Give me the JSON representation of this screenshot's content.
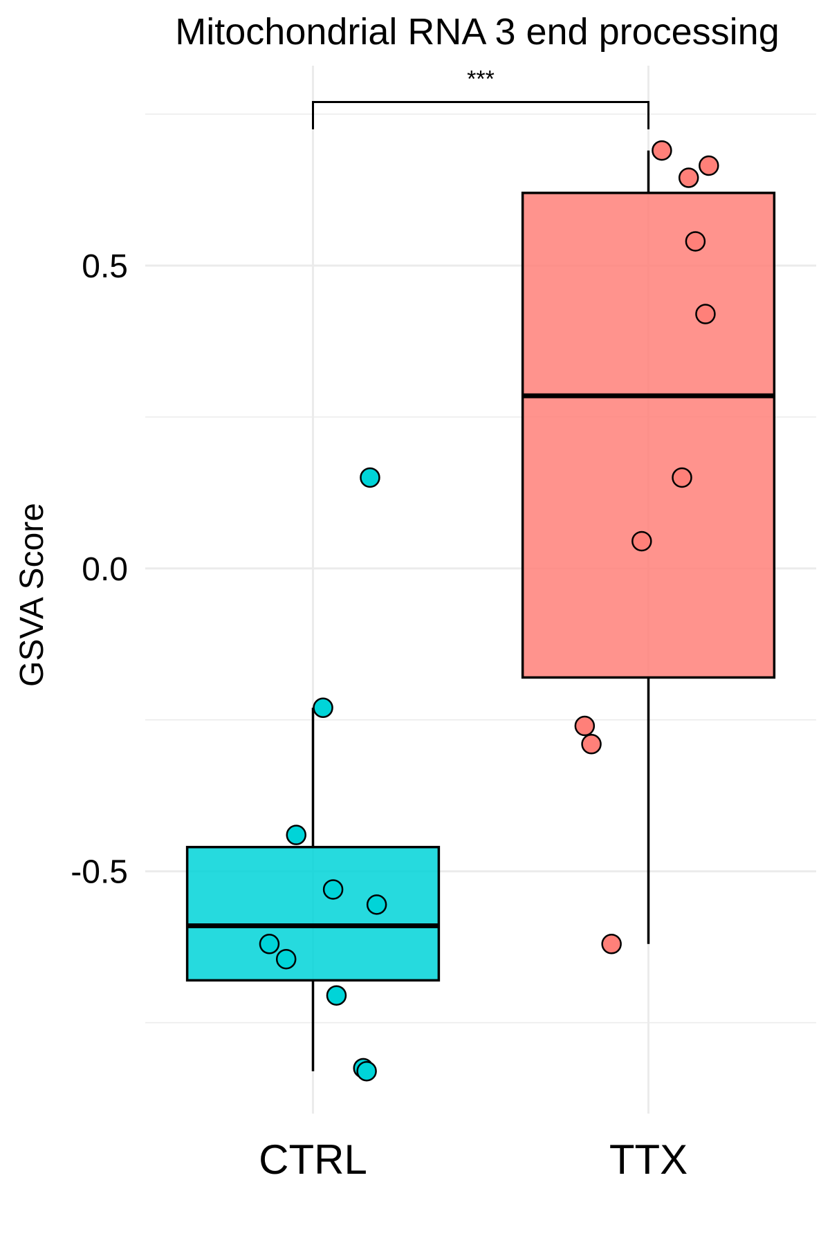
{
  "chart_data": {
    "type": "box",
    "title": "Mitochondrial RNA 3 end processing",
    "xlabel": "",
    "ylabel": "GSVA Score",
    "ylim": [
      -0.9,
      0.83
    ],
    "y_major_ticks": [
      -0.5,
      0.0,
      0.5
    ],
    "y_tick_labels": [
      "-0.5",
      "0.0",
      "0.5"
    ],
    "y_minor_ticks": [
      -0.75,
      -0.25,
      0.25,
      0.75
    ],
    "grid": true,
    "categories": [
      "CTRL",
      "TTX"
    ],
    "series": [
      {
        "category": "CTRL",
        "color": "#00D4D8",
        "box": {
          "whisker_low": -0.83,
          "q1": -0.68,
          "median": -0.59,
          "q3": -0.46,
          "whisker_high": -0.23
        },
        "points": [
          0.15,
          -0.23,
          -0.44,
          -0.53,
          -0.555,
          -0.62,
          -0.645,
          -0.705,
          -0.825,
          -0.83
        ],
        "jitter": [
          0.17,
          0.03,
          -0.05,
          0.06,
          0.19,
          -0.13,
          -0.08,
          0.07,
          0.15,
          0.16
        ]
      },
      {
        "category": "TTX",
        "color": "#FF8079",
        "box": {
          "whisker_low": -0.62,
          "q1": -0.18,
          "median": 0.285,
          "q3": 0.62,
          "whisker_high": 0.69
        },
        "points": [
          0.69,
          0.665,
          0.645,
          0.54,
          0.42,
          0.15,
          0.045,
          -0.26,
          -0.29,
          -0.62
        ],
        "jitter": [
          0.04,
          0.18,
          0.12,
          0.14,
          0.17,
          0.1,
          -0.02,
          -0.19,
          -0.17,
          -0.11
        ]
      }
    ],
    "significance": {
      "label": "***",
      "from": "CTRL",
      "to": "TTX",
      "y": 0.77,
      "drop": 0.045
    }
  }
}
